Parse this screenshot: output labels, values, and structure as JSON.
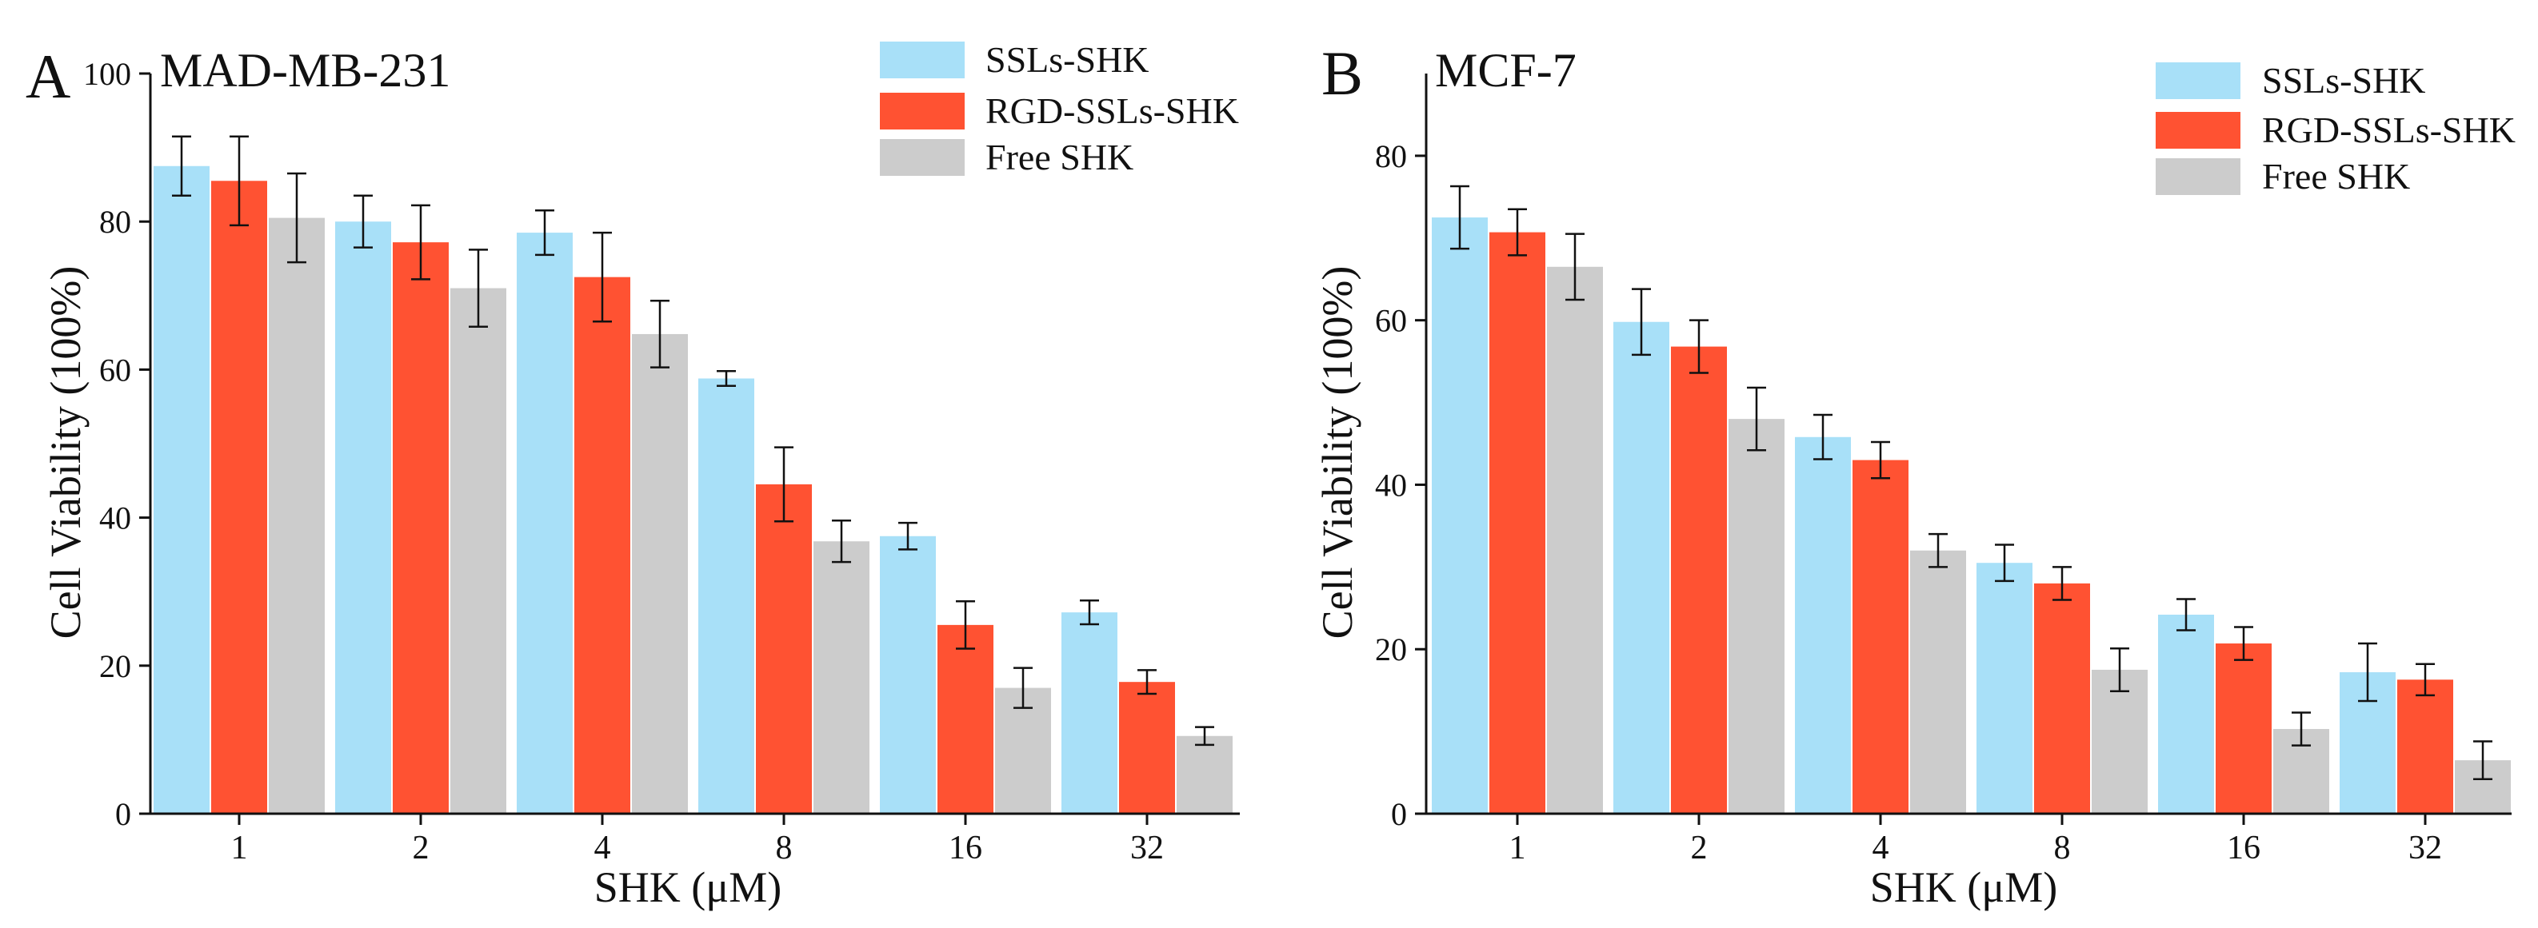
{
  "colors": {
    "ssls_shk": "#a8e0f8",
    "rgd_ssls_shk": "#ff5232",
    "free_shk": "#cccccc",
    "axis": "#111111"
  },
  "chart_data": [
    {
      "panel_letter": "A",
      "type": "bar",
      "title": "MAD-MB-231",
      "xlabel": "SHK (μM)",
      "ylabel": "Cell Viability (100%)",
      "categories": [
        "1",
        "2",
        "4",
        "8",
        "16",
        "32"
      ],
      "ylim": [
        0,
        100
      ],
      "yticks": [
        "0",
        "20",
        "40",
        "60",
        "80",
        "100"
      ],
      "legend_position": "top-right",
      "grid": false,
      "series": [
        {
          "name": "SSLs-SHK",
          "values": [
            87.5,
            80.0,
            78.5,
            58.8,
            37.5,
            27.2
          ],
          "errors": [
            4.0,
            3.5,
            3.0,
            1.0,
            1.8,
            1.6
          ]
        },
        {
          "name": "RGD-SSLs-SHK",
          "values": [
            85.5,
            77.2,
            72.5,
            44.5,
            25.5,
            17.8
          ],
          "errors": [
            6.0,
            5.0,
            6.0,
            5.0,
            3.2,
            1.6
          ]
        },
        {
          "name": "Free SHK",
          "values": [
            80.5,
            71.0,
            64.8,
            36.8,
            17.0,
            10.5
          ],
          "errors": [
            6.0,
            5.2,
            4.5,
            2.8,
            2.7,
            1.2
          ]
        }
      ]
    },
    {
      "panel_letter": "B",
      "type": "bar",
      "title": "MCF-7",
      "xlabel": "SHK (μM)",
      "ylabel": "Cell Viability (100%)",
      "categories": [
        "1",
        "2",
        "4",
        "8",
        "16",
        "32"
      ],
      "ylim": [
        0,
        90
      ],
      "yticks": [
        "0",
        "20",
        "40",
        "60",
        "80"
      ],
      "legend_position": "top-right",
      "grid": false,
      "series": [
        {
          "name": "SSLs-SHK",
          "values": [
            72.5,
            59.8,
            45.8,
            30.5,
            24.2,
            17.2
          ],
          "errors": [
            3.8,
            4.0,
            2.7,
            2.2,
            1.9,
            3.5
          ]
        },
        {
          "name": "RGD-SSLs-SHK",
          "values": [
            70.7,
            56.8,
            43.0,
            28.0,
            20.7,
            16.3
          ],
          "errors": [
            2.8,
            3.2,
            2.2,
            2.0,
            2.0,
            1.9
          ]
        },
        {
          "name": "Free SHK",
          "values": [
            66.5,
            48.0,
            32.0,
            17.5,
            10.3,
            6.5
          ],
          "errors": [
            4.0,
            3.8,
            2.0,
            2.6,
            2.0,
            2.3
          ]
        }
      ]
    }
  ]
}
